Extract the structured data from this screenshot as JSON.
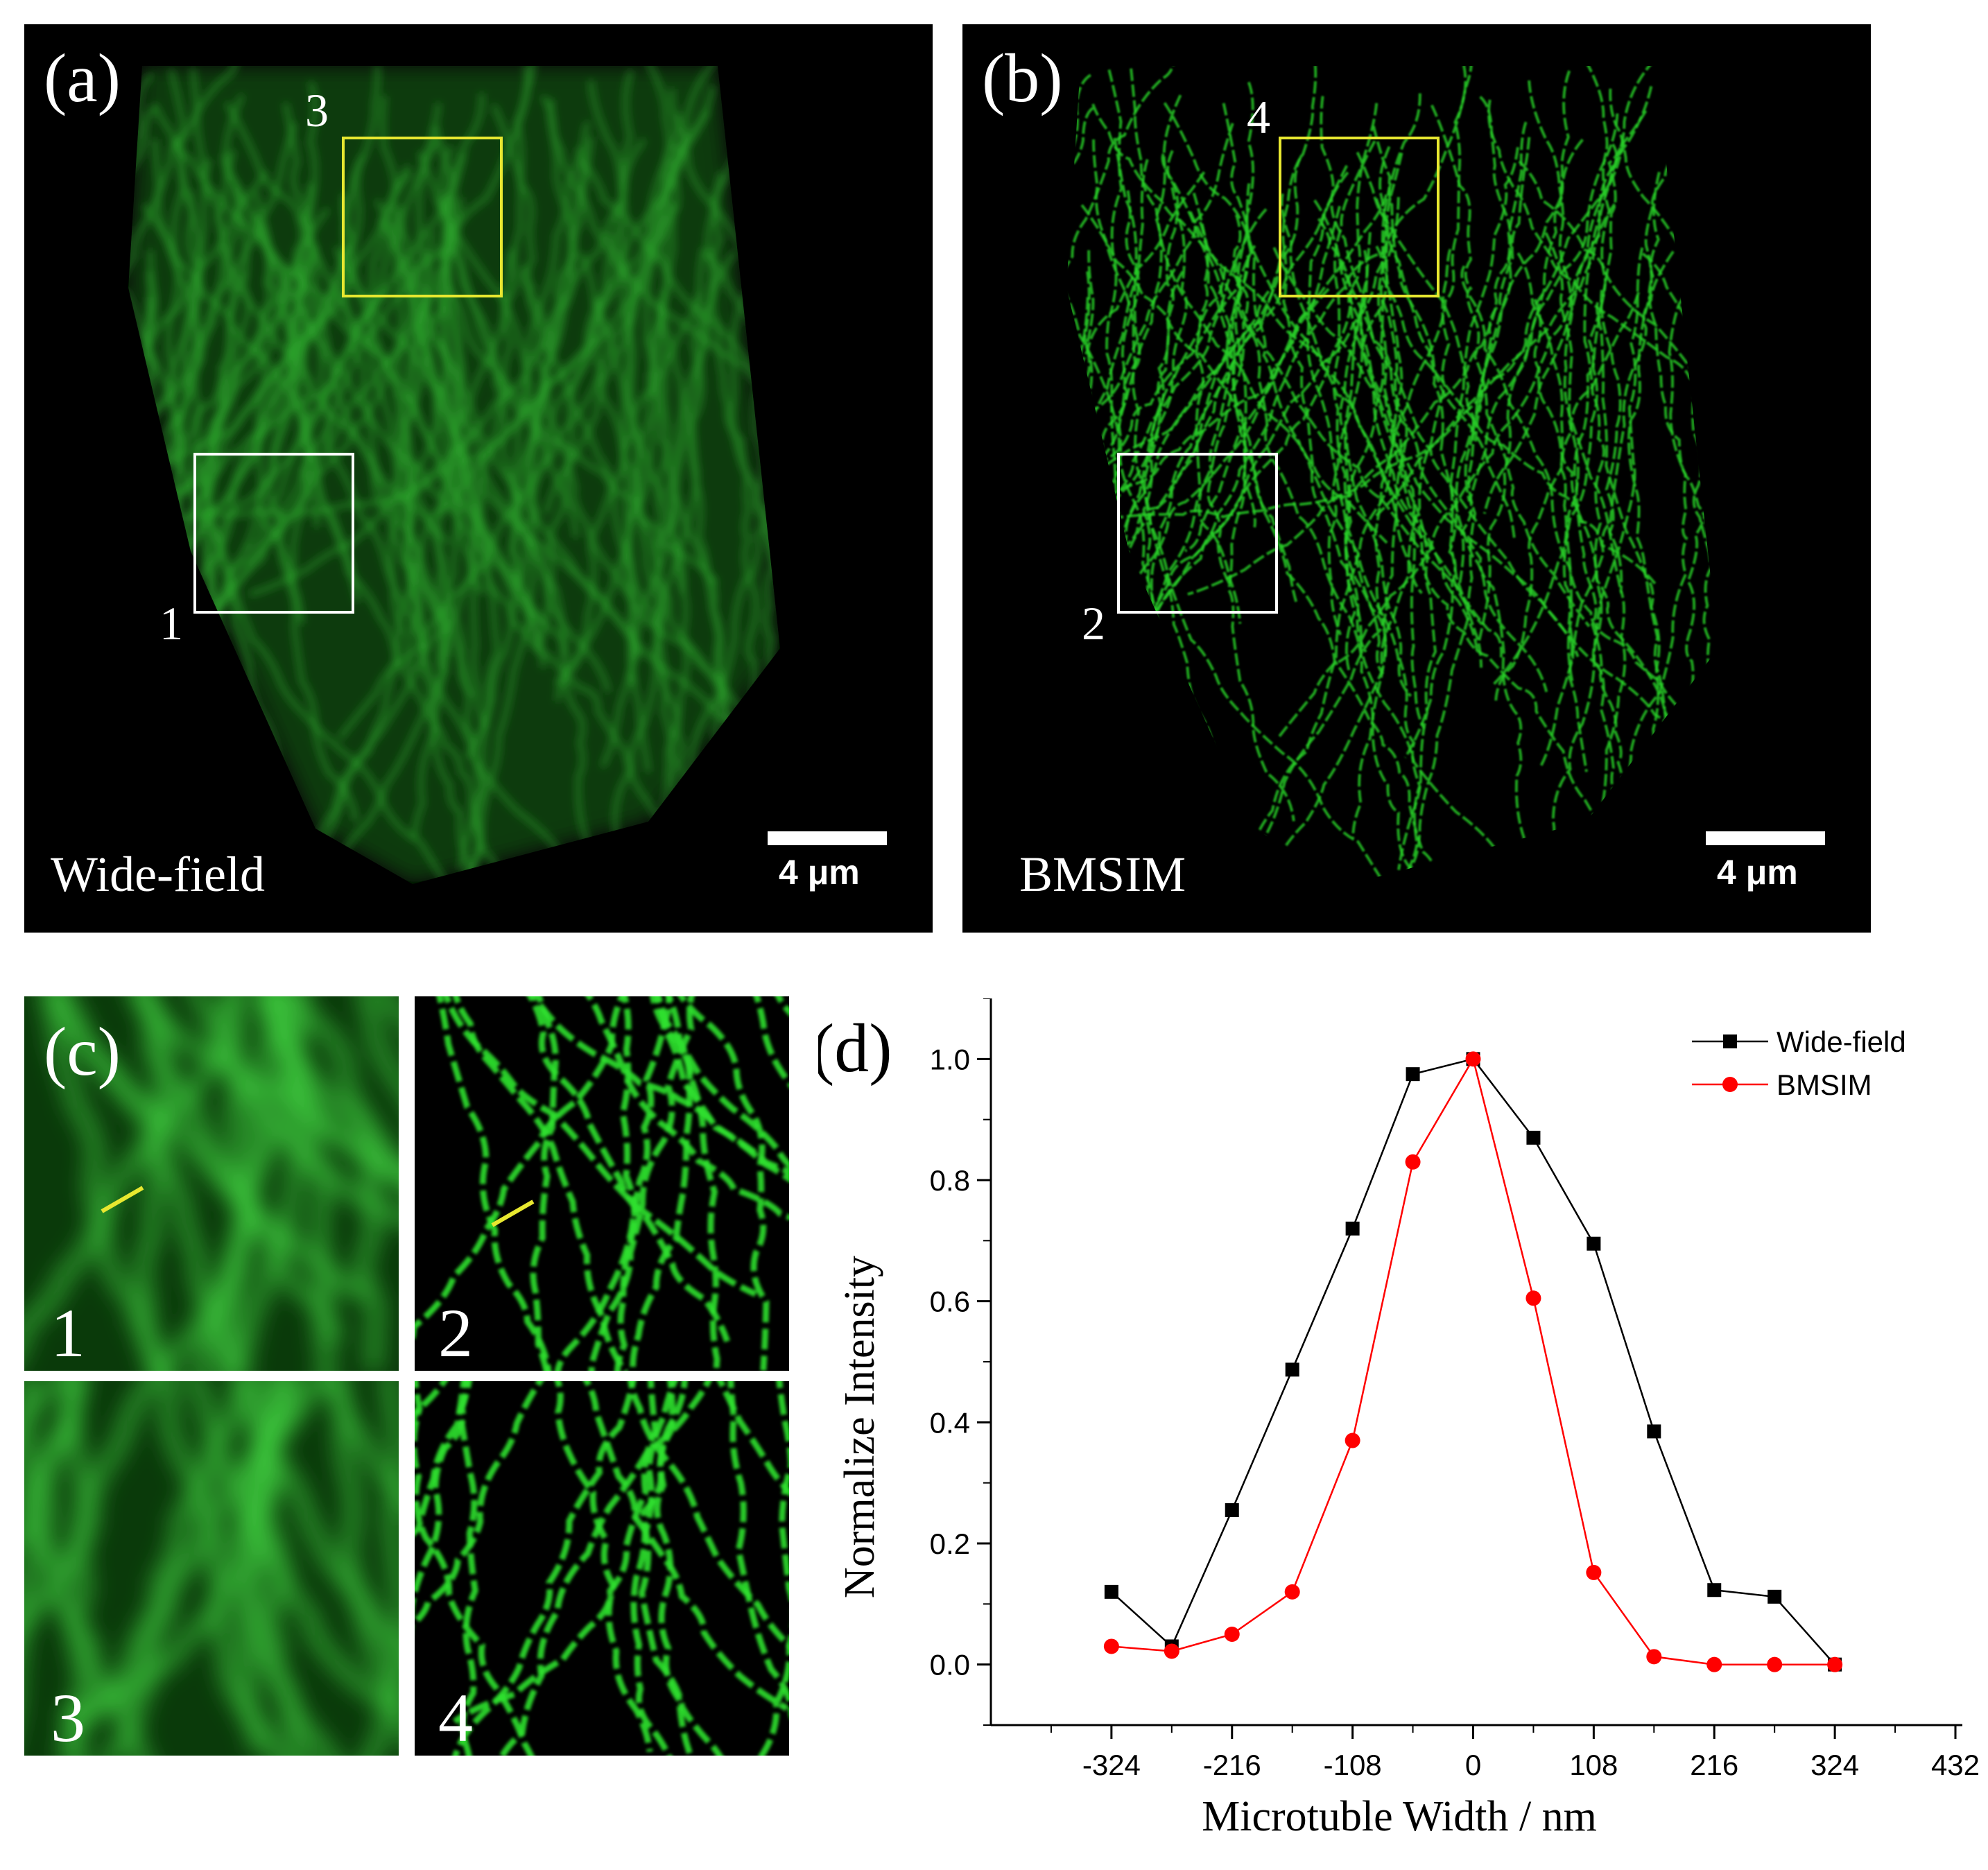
{
  "panels": {
    "a": {
      "label": "(a)",
      "caption": "Wide-field",
      "scalebar": "4 μm",
      "box_yellow": "3",
      "box_white": "1"
    },
    "b": {
      "label": "(b)",
      "caption": "BMSIM",
      "scalebar": "4 μm",
      "box_yellow": "4",
      "box_white": "2"
    },
    "c": {
      "label": "(c)",
      "tiles": [
        "1",
        "2",
        "3",
        "4"
      ]
    },
    "d": {
      "label": "(d)"
    }
  },
  "colors": {
    "wide_field": "#000000",
    "bmsim": "#ff0000",
    "fluor": "#22cc22",
    "box_yellow": "#e8e830",
    "box_white": "#ffffff"
  },
  "chart_data": {
    "type": "line",
    "xlabel": "Microtuble Width / nm",
    "ylabel": "Normalize  Intensity",
    "xticks": [
      -324,
      -216,
      -108,
      0,
      108,
      216,
      324,
      432
    ],
    "yticks": [
      "0.0",
      "0.2",
      "0.4",
      "0.6",
      "0.8",
      "1.0"
    ],
    "xlim": [
      -432,
      432
    ],
    "ylim": [
      -0.1,
      1.1
    ],
    "legend_position": "top-right",
    "x": [
      -324,
      -270,
      -216,
      -162,
      -108,
      -54,
      0,
      54,
      108,
      162,
      216,
      270,
      324
    ],
    "series": [
      {
        "name": "Wide-field",
        "color": "#000000",
        "marker": "square",
        "values": [
          0.12,
          0.03,
          0.255,
          0.487,
          0.72,
          0.975,
          1.0,
          0.87,
          0.695,
          0.385,
          0.123,
          0.112,
          0.0
        ]
      },
      {
        "name": "BMSIM",
        "color": "#ff0000",
        "marker": "circle",
        "values": [
          0.03,
          0.022,
          0.05,
          0.12,
          0.37,
          0.83,
          1.0,
          0.605,
          0.152,
          0.013,
          0.0,
          0.0,
          0.0
        ]
      }
    ]
  }
}
